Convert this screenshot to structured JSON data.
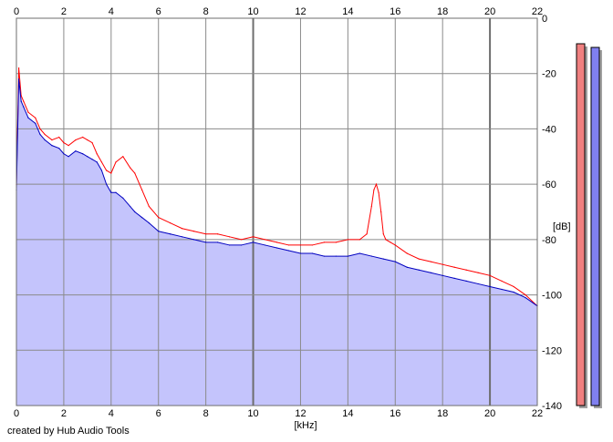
{
  "chart_data": {
    "type": "area",
    "xlabel": "[kHz]",
    "ylabel": "[dB]",
    "xlim": [
      0,
      22
    ],
    "ylim": [
      -140,
      0
    ],
    "x_ticks": [
      "0",
      "2",
      "4",
      "6",
      "8",
      "10",
      "12",
      "14",
      "16",
      "18",
      "20",
      "22"
    ],
    "y_ticks": [
      "0",
      "-20",
      "-40",
      "-60",
      "-80",
      "-100",
      "-120",
      "-140"
    ],
    "grid": true,
    "background_fill_color": "#c4c4fc",
    "series": [
      {
        "color": "#ff0000",
        "x": [
          0,
          0.1,
          0.2,
          0.3,
          0.5,
          0.8,
          1.0,
          1.2,
          1.5,
          1.8,
          2.0,
          2.2,
          2.5,
          2.8,
          3.0,
          3.2,
          3.4,
          3.6,
          3.8,
          4.0,
          4.2,
          4.5,
          4.8,
          5.0,
          5.3,
          5.6,
          6.0,
          6.5,
          7.0,
          7.5,
          8.0,
          8.5,
          9.0,
          9.5,
          10.0,
          10.5,
          11.0,
          11.5,
          12.0,
          12.5,
          13.0,
          13.5,
          14.0,
          14.5,
          14.8,
          15.0,
          15.1,
          15.2,
          15.3,
          15.4,
          15.5,
          15.6,
          15.8,
          16.0,
          16.5,
          17.0,
          17.5,
          18.0,
          18.5,
          19.0,
          19.5,
          20.0,
          20.5,
          21.0,
          21.5,
          22.0
        ],
        "y": [
          -60,
          -18,
          -28,
          -30,
          -34,
          -36,
          -40,
          -42,
          -44,
          -43,
          -45,
          -46,
          -44,
          -43,
          -44,
          -45,
          -49,
          -52,
          -55,
          -56,
          -52,
          -50,
          -54,
          -56,
          -62,
          -68,
          -72,
          -74,
          -76,
          -77,
          -78,
          -78,
          -79,
          -80,
          -79,
          -80,
          -81,
          -82,
          -82,
          -82,
          -81,
          -81,
          -80,
          -80,
          -78,
          -68,
          -62,
          -60,
          -63,
          -70,
          -78,
          -80,
          -81,
          -82,
          -85,
          -87,
          -88,
          -89,
          -90,
          -91,
          -92,
          -93,
          -95,
          -97,
          -100,
          -104
        ]
      },
      {
        "color": "#0000c0",
        "x": [
          0,
          0.1,
          0.2,
          0.3,
          0.5,
          0.8,
          1.0,
          1.2,
          1.5,
          1.8,
          2.0,
          2.2,
          2.5,
          2.8,
          3.0,
          3.2,
          3.4,
          3.6,
          3.8,
          4.0,
          4.2,
          4.5,
          4.8,
          5.0,
          5.3,
          5.6,
          6.0,
          6.5,
          7.0,
          7.5,
          8.0,
          8.5,
          9.0,
          9.5,
          10.0,
          10.5,
          11.0,
          11.5,
          12.0,
          12.5,
          13.0,
          13.5,
          14.0,
          14.5,
          15.0,
          15.5,
          16.0,
          16.5,
          17.0,
          17.5,
          18.0,
          18.5,
          19.0,
          19.5,
          20.0,
          20.5,
          21.0,
          21.5,
          22.0
        ],
        "y": [
          -62,
          -22,
          -30,
          -32,
          -36,
          -38,
          -42,
          -44,
          -46,
          -47,
          -49,
          -50,
          -48,
          -49,
          -50,
          -51,
          -52,
          -55,
          -60,
          -63,
          -63,
          -65,
          -68,
          -70,
          -72,
          -74,
          -77,
          -78,
          -79,
          -80,
          -81,
          -81,
          -82,
          -82,
          -81,
          -82,
          -83,
          -84,
          -85,
          -85,
          -86,
          -86,
          -86,
          -85,
          -86,
          -87,
          -88,
          -90,
          -91,
          -92,
          -93,
          -94,
          -95,
          -96,
          -97,
          -98,
          -99,
          -101,
          -104
        ]
      }
    ],
    "level_meters": [
      {
        "color": "#f08080",
        "level": 0.99
      },
      {
        "color": "#8080f0",
        "level": 0.98
      }
    ]
  },
  "footer": {
    "credit": "created by Hub Audio Tools"
  }
}
